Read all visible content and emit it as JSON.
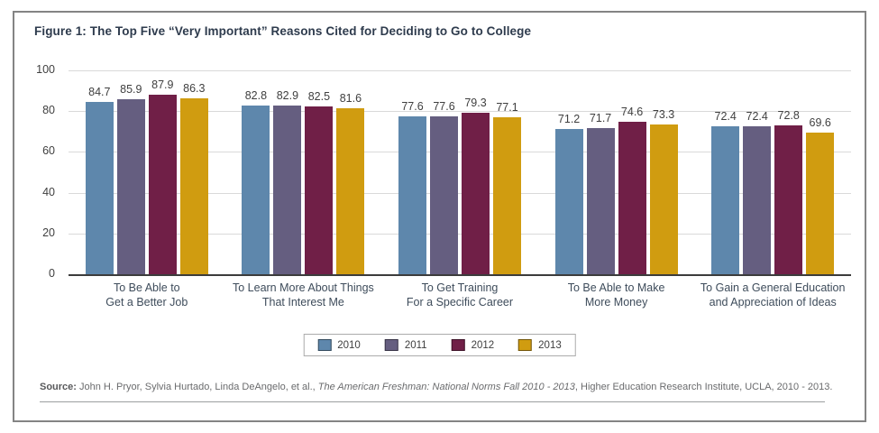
{
  "figure": {
    "title": "Figure 1: The Top Five “Very Important” Reasons Cited for Deciding to Go to College",
    "source_label": "Source:",
    "source_text_1": " John H. Pryor, Sylvia Hurtado, Linda DeAngelo, et al., ",
    "source_text_italic": "The American Freshman: National Norms Fall 2010 - 2013",
    "source_text_2": ", Higher Education Research Institute, UCLA, 2010 - 2013."
  },
  "chart_data": {
    "type": "bar",
    "title": "Figure 1: The Top Five “Very Important” Reasons Cited for Deciding to Go to College",
    "categories": [
      "To Be Able to\nGet a Better Job",
      "To Learn More About Things\nThat Interest Me",
      "To Get Training\nFor a Specific Career",
      "To Be Able to Make\nMore Money",
      "To Gain a General Education\nand Appreciation of Ideas"
    ],
    "series": [
      {
        "name": "2010",
        "color": "#5e87ac",
        "values": [
          84.7,
          82.8,
          77.6,
          71.2,
          72.4
        ]
      },
      {
        "name": "2011",
        "color": "#655e80",
        "values": [
          85.9,
          82.9,
          77.6,
          71.7,
          72.4
        ]
      },
      {
        "name": "2012",
        "color": "#701f47",
        "values": [
          87.9,
          82.5,
          79.3,
          74.6,
          72.8
        ]
      },
      {
        "name": "2013",
        "color": "#d09c10",
        "values": [
          86.3,
          81.6,
          77.1,
          73.3,
          69.6
        ]
      }
    ],
    "xlabel": "",
    "ylabel": "",
    "ylim": [
      0,
      100
    ],
    "yticks": [
      0,
      20,
      40,
      60,
      80,
      100
    ],
    "grid": true,
    "value_labels": true,
    "legend_position": "bottom",
    "grid_color": "#d9d9d9",
    "axis_color": "#3c3c3c"
  }
}
